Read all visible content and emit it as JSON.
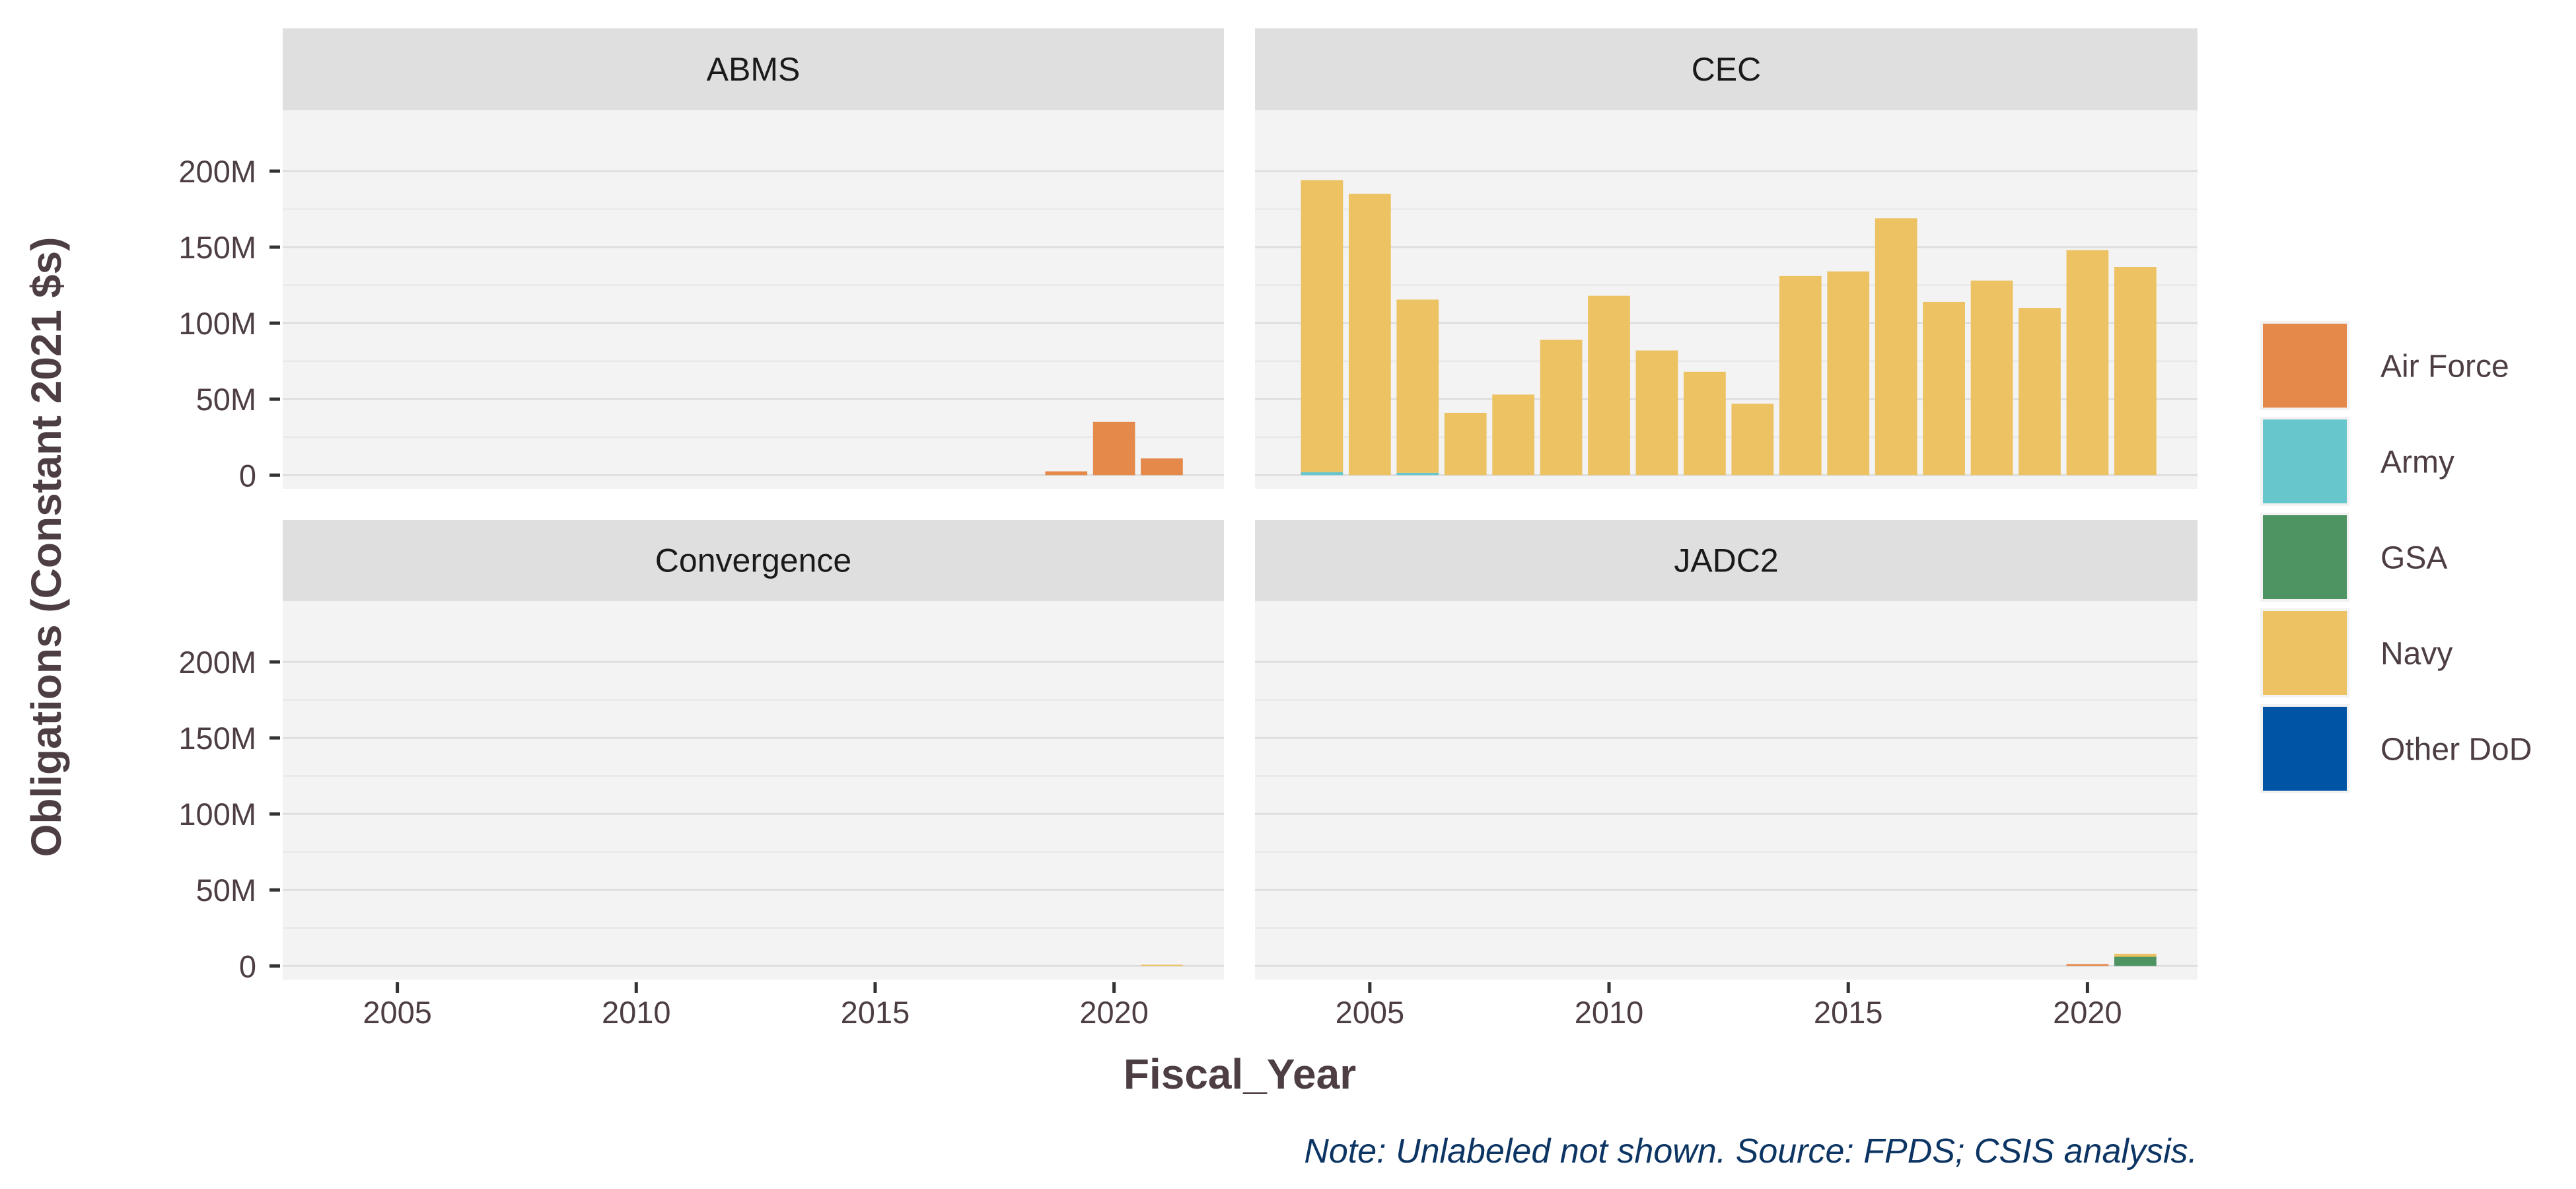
{
  "chart_data": {
    "type": "bar",
    "stacked": true,
    "faceted": true,
    "xlabel": "Fiscal_Year",
    "ylabel": "Obligations (Constant 2021 $s)",
    "caption": "Note: Unlabeled not shown. Source: FPDS; CSIS analysis.",
    "xlim": [
      2002.6,
      2022.3
    ],
    "ylim": [
      -9000000,
      240000000
    ],
    "x_ticks": [
      2005,
      2010,
      2015,
      2020
    ],
    "y_ticks": [
      0,
      50000000,
      100000000,
      150000000,
      200000000
    ],
    "y_tick_labels": [
      "0",
      "50M",
      "100M",
      "150M",
      "200M"
    ],
    "grid": true,
    "legend_position": "right",
    "colors": {
      "Air Force": "#e4894a",
      "Army": "#67c6cb",
      "GSA": "#4e9462",
      "Navy": "#ecc262",
      "Other DoD": "#0054a6"
    },
    "legend": [
      "Air Force",
      "Army",
      "GSA",
      "Navy",
      "Other DoD"
    ],
    "facets": [
      {
        "name": "ABMS",
        "bars": [
          {
            "x": 2019,
            "segments": {
              "Air Force": 2500000
            }
          },
          {
            "x": 2020,
            "segments": {
              "Air Force": 35000000
            }
          },
          {
            "x": 2021,
            "segments": {
              "Air Force": 11000000
            }
          }
        ]
      },
      {
        "name": "CEC",
        "bars": [
          {
            "x": 2004,
            "segments": {
              "Navy": 192000000,
              "Army": 2000000
            }
          },
          {
            "x": 2005,
            "segments": {
              "Navy": 185000000
            }
          },
          {
            "x": 2006,
            "segments": {
              "Navy": 114000000,
              "Army": 1500000
            }
          },
          {
            "x": 2007,
            "segments": {
              "Navy": 41000000
            }
          },
          {
            "x": 2008,
            "segments": {
              "Navy": 53000000
            }
          },
          {
            "x": 2009,
            "segments": {
              "Navy": 89000000
            }
          },
          {
            "x": 2010,
            "segments": {
              "Navy": 118000000
            }
          },
          {
            "x": 2011,
            "segments": {
              "Navy": 82000000
            }
          },
          {
            "x": 2012,
            "segments": {
              "Navy": 68000000
            }
          },
          {
            "x": 2013,
            "segments": {
              "Navy": 47000000
            }
          },
          {
            "x": 2014,
            "segments": {
              "Navy": 131000000
            }
          },
          {
            "x": 2015,
            "segments": {
              "Navy": 134000000
            }
          },
          {
            "x": 2016,
            "segments": {
              "Navy": 169000000
            }
          },
          {
            "x": 2017,
            "segments": {
              "Navy": 114000000
            }
          },
          {
            "x": 2018,
            "segments": {
              "Navy": 128000000
            }
          },
          {
            "x": 2019,
            "segments": {
              "Navy": 110000000
            }
          },
          {
            "x": 2020,
            "segments": {
              "Navy": 148000000
            }
          },
          {
            "x": 2021,
            "segments": {
              "Navy": 137000000
            }
          }
        ]
      },
      {
        "name": "Convergence",
        "bars": [
          {
            "x": 2021,
            "segments": {
              "Navy": 800000
            }
          }
        ]
      },
      {
        "name": "JADC2",
        "bars": [
          {
            "x": 2020,
            "segments": {
              "Air Force": 1200000
            }
          },
          {
            "x": 2021,
            "segments": {
              "Navy": 2000000,
              "GSA": 6000000
            }
          }
        ]
      }
    ]
  }
}
